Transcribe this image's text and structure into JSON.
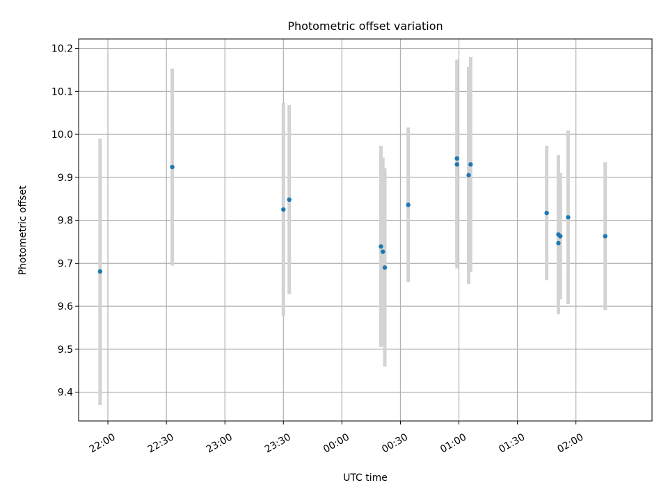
{
  "chart_data": {
    "type": "scatter",
    "title": "Photometric offset variation",
    "xlabel": "UTC time",
    "ylabel": "Photometric offset",
    "xlim": [
      "21:45",
      "02:39"
    ],
    "ylim": [
      9.333,
      10.222
    ],
    "grid": true,
    "x_ticks": [
      "22:00",
      "22:30",
      "23:00",
      "23:30",
      "00:00",
      "00:30",
      "01:00",
      "01:30",
      "02:00"
    ],
    "y_ticks": [
      "9.4",
      "9.5",
      "9.6",
      "9.7",
      "9.8",
      "9.9",
      "10.0",
      "10.1",
      "10.2"
    ],
    "point_color": "#1f77b4",
    "errorbar_color": "#d3d3d3",
    "points": [
      {
        "x": "21:56",
        "y": 9.681,
        "lo": 9.37,
        "hi": 9.99
      },
      {
        "x": "22:33",
        "y": 9.924,
        "lo": 9.695,
        "hi": 10.153
      },
      {
        "x": "23:30",
        "y": 9.825,
        "lo": 9.577,
        "hi": 10.073
      },
      {
        "x": "23:33",
        "y": 9.848,
        "lo": 9.628,
        "hi": 10.068
      },
      {
        "x": "00:20",
        "y": 9.739,
        "lo": 9.505,
        "hi": 9.973
      },
      {
        "x": "00:21",
        "y": 9.727,
        "lo": 9.508,
        "hi": 9.946
      },
      {
        "x": "00:22",
        "y": 9.69,
        "lo": 9.46,
        "hi": 9.921
      },
      {
        "x": "00:34",
        "y": 9.836,
        "lo": 9.656,
        "hi": 10.016
      },
      {
        "x": "00:59",
        "y": 9.93,
        "lo": 9.688,
        "hi": 10.172
      },
      {
        "x": "00:59",
        "y": 9.944,
        "lo": 9.713,
        "hi": 10.174
      },
      {
        "x": "01:05",
        "y": 9.905,
        "lo": 9.652,
        "hi": 10.157
      },
      {
        "x": "01:06",
        "y": 9.93,
        "lo": 9.68,
        "hi": 10.18
      },
      {
        "x": "01:45",
        "y": 9.817,
        "lo": 9.661,
        "hi": 9.973
      },
      {
        "x": "01:51",
        "y": 9.767,
        "lo": 9.582,
        "hi": 9.952
      },
      {
        "x": "01:51",
        "y": 9.747,
        "lo": 9.582,
        "hi": 9.912
      },
      {
        "x": "01:52",
        "y": 9.763,
        "lo": 9.616,
        "hi": 9.91
      },
      {
        "x": "01:56",
        "y": 9.807,
        "lo": 9.605,
        "hi": 10.009
      },
      {
        "x": "02:15",
        "y": 9.763,
        "lo": 9.591,
        "hi": 9.935
      }
    ]
  }
}
